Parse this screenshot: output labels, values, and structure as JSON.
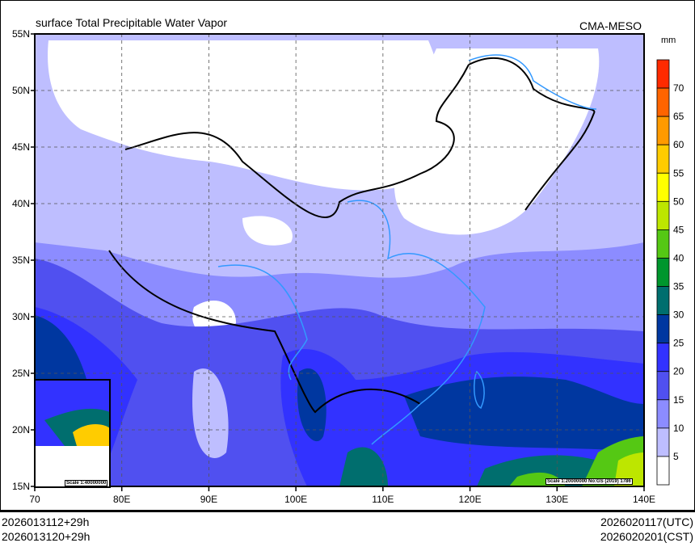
{
  "header": {
    "title": "surface Total Precipitable Water Vapor",
    "model": "CMA-MESO"
  },
  "colorbar": {
    "unit": "mm",
    "levels": [
      "70",
      "65",
      "60",
      "55",
      "50",
      "45",
      "40",
      "35",
      "30",
      "25",
      "20",
      "15",
      "10",
      "5"
    ],
    "colors": [
      "#ff2a00",
      "#ff6400",
      "#ff9a00",
      "#ffcc00",
      "#ffff00",
      "#bde600",
      "#55c814",
      "#00962d",
      "#006e6e",
      "#0037a0",
      "#3232ff",
      "#5050f0",
      "#8c8cff",
      "#bebeff",
      "#ffffff"
    ]
  },
  "axes": {
    "lon_labels": [
      "70",
      "80E",
      "90E",
      "100E",
      "110E",
      "120E",
      "130E",
      "140E"
    ],
    "lat_labels": [
      "55N",
      "50N",
      "45N",
      "40N",
      "35N",
      "30N",
      "25N",
      "20N",
      "15N"
    ]
  },
  "inset": {
    "scale": "Scale 1:40000000"
  },
  "map_note": "Scale 1:20000000 No:GS (2019) 1786",
  "footer": {
    "init_utc": "2026013112+29h",
    "init_cst": "2026013120+29h",
    "valid_utc": "2026020117(UTC)",
    "valid_cst": "2026020201(CST)"
  }
}
